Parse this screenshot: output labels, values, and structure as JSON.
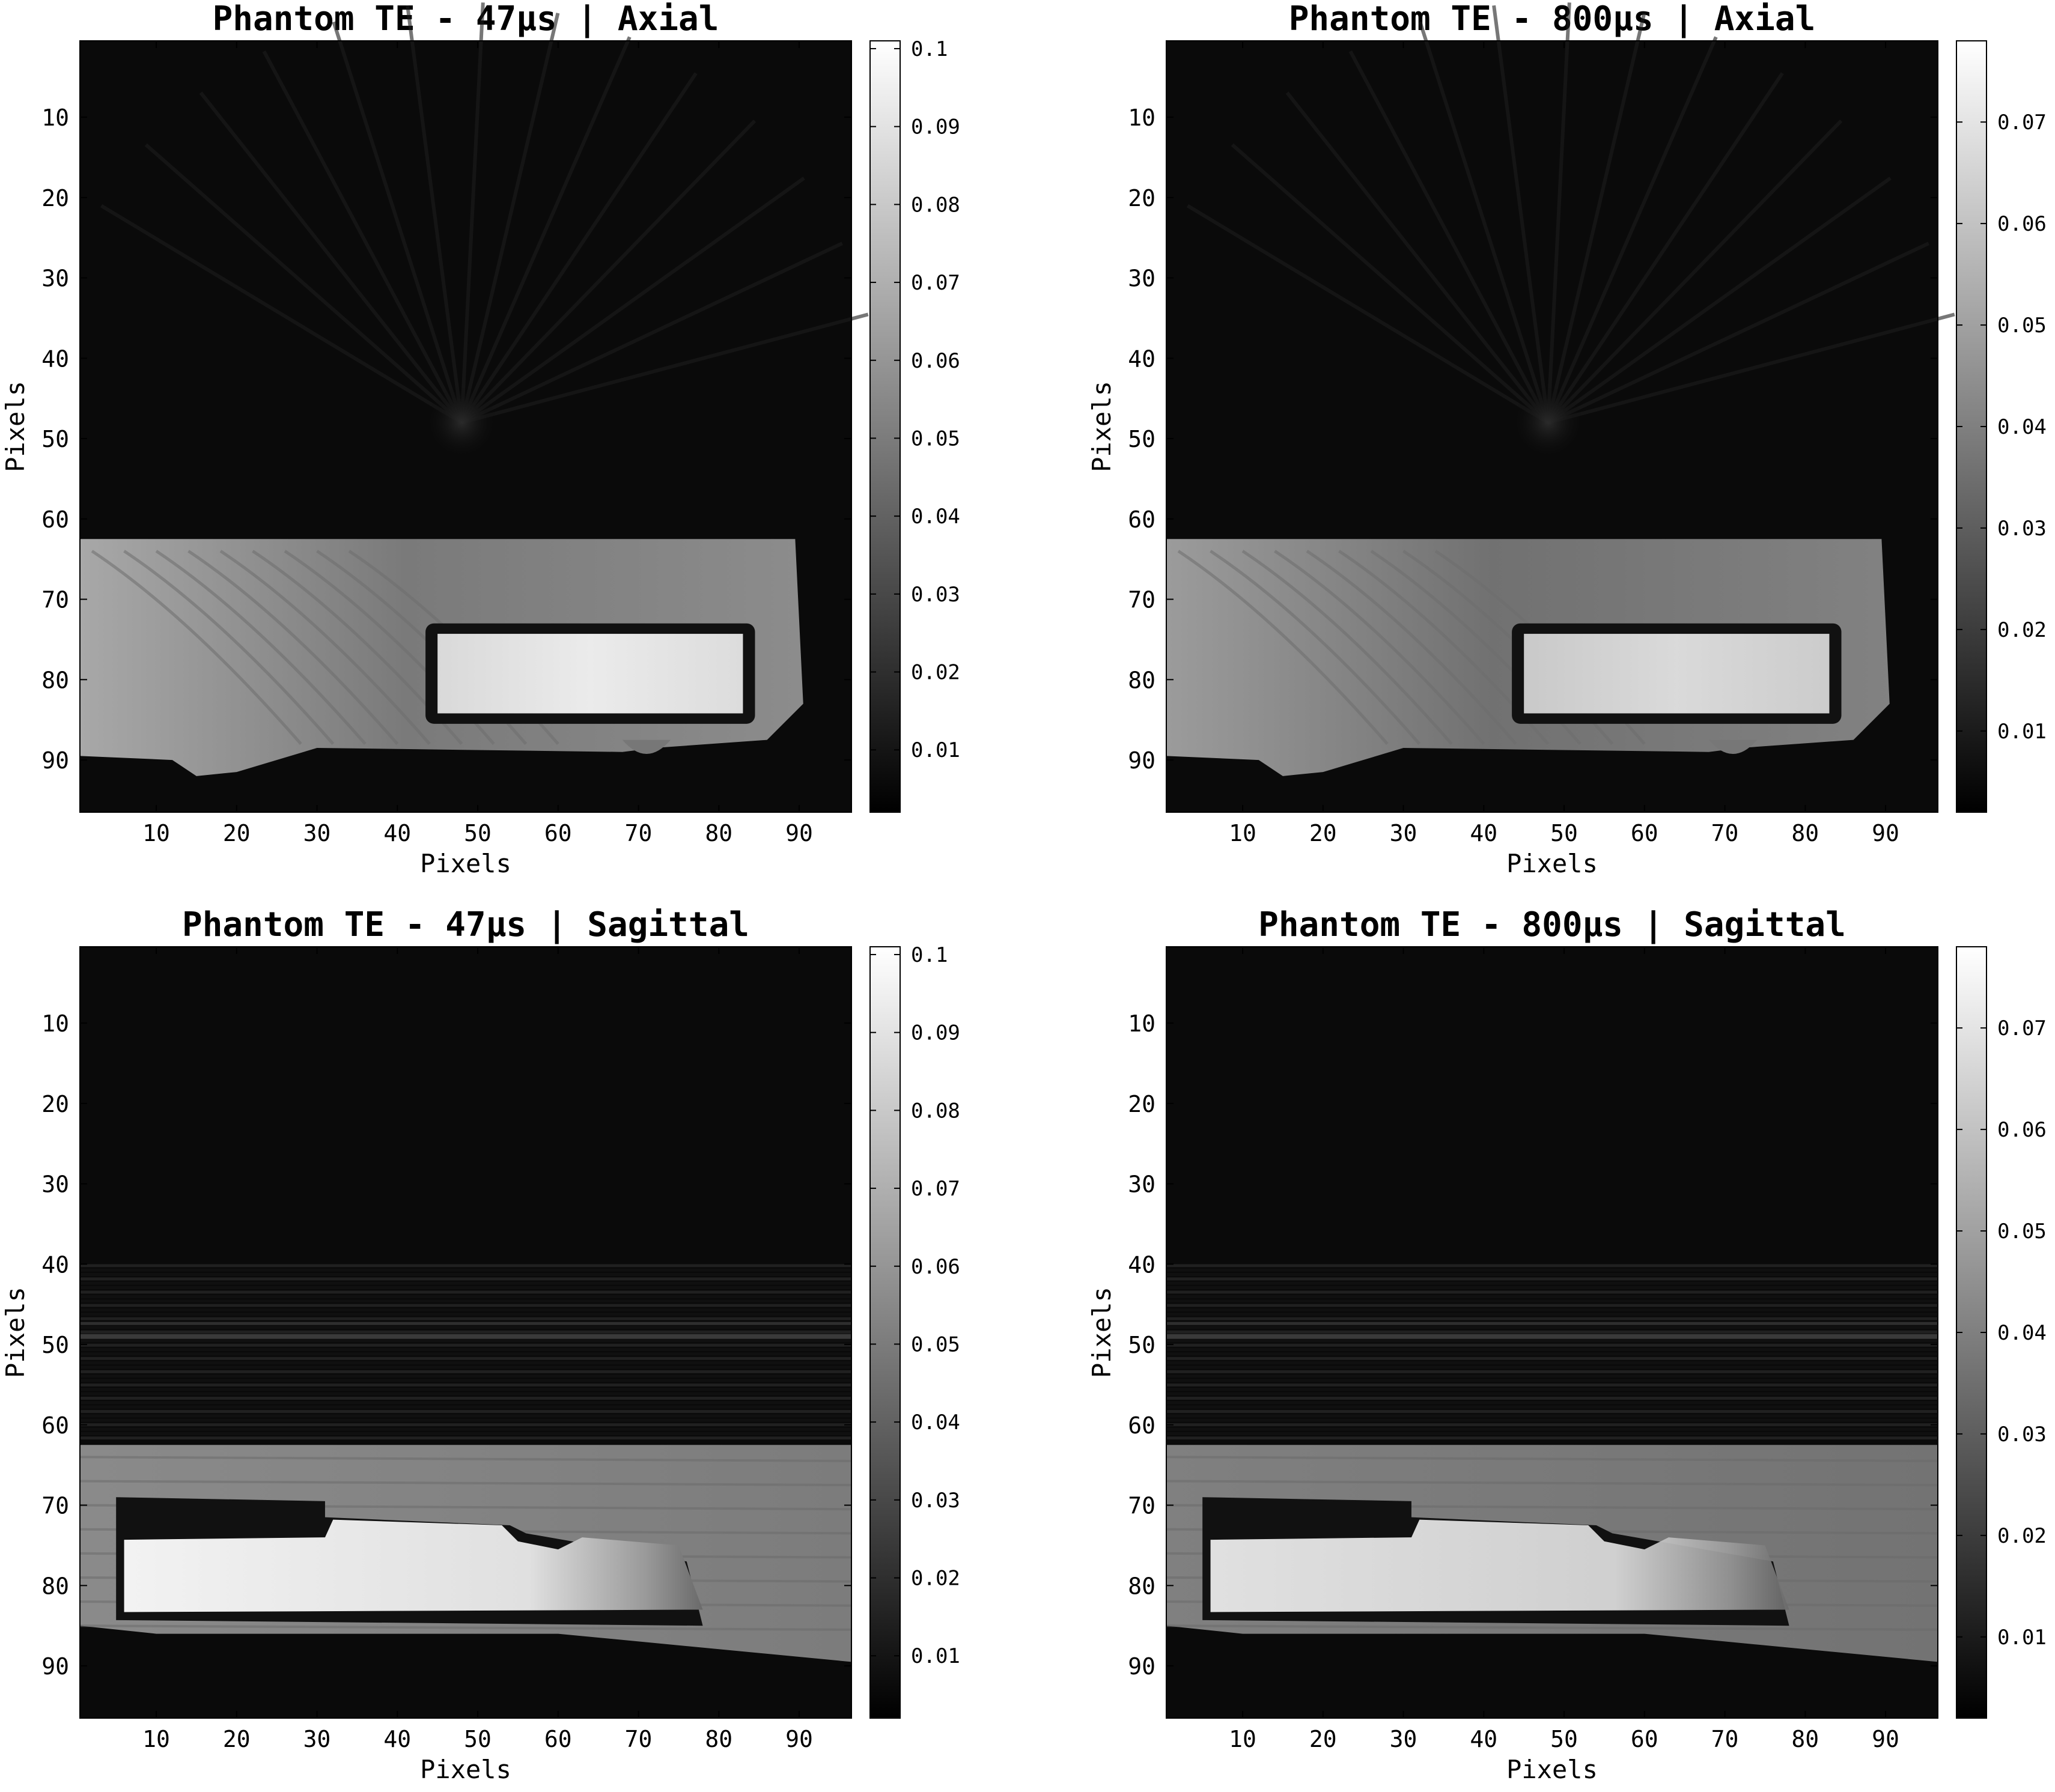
{
  "panels": [
    {
      "id": "axial-47",
      "title": "Phantom TE - 47μs | Axial",
      "xlabel": "Pixels",
      "ylabel": "Pixels",
      "x_ticks": [
        "10",
        "20",
        "30",
        "40",
        "50",
        "60",
        "70",
        "80",
        "90"
      ],
      "y_ticks": [
        "10",
        "20",
        "30",
        "40",
        "50",
        "60",
        "70",
        "80",
        "90"
      ],
      "colorbar_ticks": [
        "0.1",
        "0.09",
        "0.08",
        "0.07",
        "0.06",
        "0.05",
        "0.04",
        "0.03",
        "0.02",
        "0.01"
      ],
      "colorbar_values": [
        0.1,
        0.09,
        0.08,
        0.07,
        0.06,
        0.05,
        0.04,
        0.03,
        0.02,
        0.01
      ],
      "colorbar_range": [
        0.002,
        0.101
      ]
    },
    {
      "id": "axial-800",
      "title": "Phantom TE - 800μs | Axial",
      "xlabel": "Pixels",
      "ylabel": "Pixels",
      "x_ticks": [
        "10",
        "20",
        "30",
        "40",
        "50",
        "60",
        "70",
        "80",
        "90"
      ],
      "y_ticks": [
        "10",
        "20",
        "30",
        "40",
        "50",
        "60",
        "70",
        "80",
        "90"
      ],
      "colorbar_ticks": [
        "0.07",
        "0.06",
        "0.05",
        "0.04",
        "0.03",
        "0.02",
        "0.01"
      ],
      "colorbar_values": [
        0.07,
        0.06,
        0.05,
        0.04,
        0.03,
        0.02,
        0.01
      ],
      "colorbar_range": [
        0.002,
        0.078
      ]
    },
    {
      "id": "sagittal-47",
      "title": "Phantom TE - 47μs | Sagittal",
      "xlabel": "Pixels",
      "ylabel": "Pixels",
      "x_ticks": [
        "10",
        "20",
        "30",
        "40",
        "50",
        "60",
        "70",
        "80",
        "90"
      ],
      "y_ticks": [
        "10",
        "20",
        "30",
        "40",
        "50",
        "60",
        "70",
        "80",
        "90"
      ],
      "colorbar_ticks": [
        "0.1",
        "0.09",
        "0.08",
        "0.07",
        "0.06",
        "0.05",
        "0.04",
        "0.03",
        "0.02",
        "0.01"
      ],
      "colorbar_values": [
        0.1,
        0.09,
        0.08,
        0.07,
        0.06,
        0.05,
        0.04,
        0.03,
        0.02,
        0.01
      ],
      "colorbar_range": [
        0.002,
        0.101
      ]
    },
    {
      "id": "sagittal-800",
      "title": "Phantom TE - 800μs | Sagittal",
      "xlabel": "Pixels",
      "ylabel": "Pixels",
      "x_ticks": [
        "10",
        "20",
        "30",
        "40",
        "50",
        "60",
        "70",
        "80",
        "90"
      ],
      "y_ticks": [
        "10",
        "20",
        "30",
        "40",
        "50",
        "60",
        "70",
        "80",
        "90"
      ],
      "colorbar_ticks": [
        "0.07",
        "0.06",
        "0.05",
        "0.04",
        "0.03",
        "0.02",
        "0.01"
      ],
      "colorbar_values": [
        0.07,
        0.06,
        0.05,
        0.04,
        0.03,
        0.02,
        0.01
      ],
      "colorbar_range": [
        0.002,
        0.078
      ]
    }
  ],
  "colors": {
    "background": "#ffffff",
    "image_dark": "#0a0a0a",
    "phantom_body": "#8f8f8f",
    "insert_bright": "#e6e6e6",
    "axis": "#000000"
  }
}
